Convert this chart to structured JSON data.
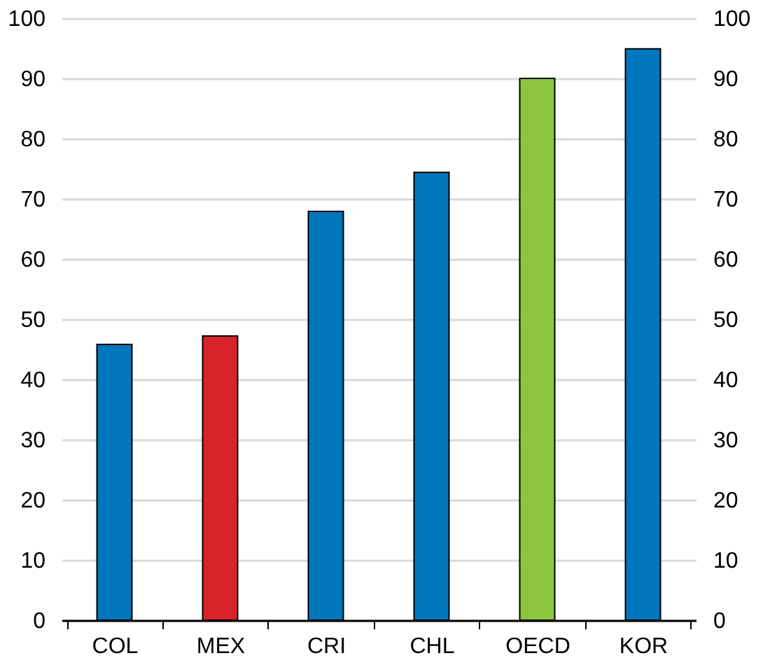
{
  "chart_data": {
    "type": "bar",
    "categories": [
      "COL",
      "MEX",
      "CRI",
      "CHL",
      "OECD",
      "KOR"
    ],
    "values": [
      45.8,
      47.2,
      67.9,
      74.4,
      90.0,
      94.9
    ],
    "colors": [
      "#0077bd",
      "#d9232a",
      "#0077bd",
      "#0077bd",
      "#8cc63f",
      "#0077bd"
    ],
    "ylim": [
      0,
      100
    ],
    "yticks": [
      0,
      10,
      20,
      30,
      40,
      50,
      60,
      70,
      80,
      90,
      100
    ],
    "y2lim": [
      0,
      100
    ],
    "y2ticks": [
      0,
      10,
      20,
      30,
      40,
      50,
      60,
      70,
      80,
      90,
      100
    ],
    "grid": "y"
  }
}
